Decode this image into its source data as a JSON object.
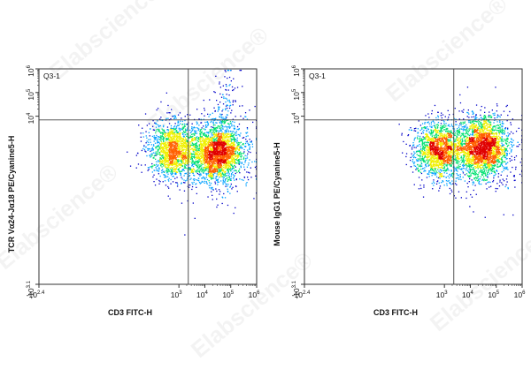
{
  "watermark": {
    "text": "Elabscience",
    "registered": "®"
  },
  "chart_data": [
    {
      "type": "scatter",
      "subtype": "flow-cytometry-density-dot-plot",
      "title": "",
      "xlabel": "CD3 FITC-H",
      "ylabel": "TCR Vα24-Jα18 PE/Cyanine5-H",
      "scale": "biexponential (log with negative region)",
      "x_ticks": [
        {
          "base": "-10",
          "exp": "2.4",
          "value": -251
        },
        {
          "base": "10",
          "exp": "3",
          "value": 1000
        },
        {
          "base": "10",
          "exp": "4",
          "value": 10000
        },
        {
          "base": "10",
          "exp": "5",
          "value": 100000
        },
        {
          "base": "10",
          "exp": "6",
          "value": 1000000
        }
      ],
      "y_ticks": [
        {
          "base": "-10",
          "exp": "3.1",
          "value": -1259
        },
        {
          "base": "10",
          "exp": "4",
          "value": 10000
        },
        {
          "base": "10",
          "exp": "5",
          "value": 100000
        },
        {
          "base": "10",
          "exp": "6",
          "value": 1000000
        }
      ],
      "gate": {
        "label": "Q3-1",
        "x_threshold": 2300,
        "y_threshold": 7000
      },
      "populations": [
        {
          "x_center": 600,
          "y_center": 400,
          "count": 1600
        },
        {
          "x_center": 30000,
          "y_center": 300,
          "count": 2200
        },
        {
          "x_center": 25000,
          "y_center": 150,
          "count": 300
        },
        {
          "x_center": 50000,
          "y_center": 25000,
          "count": 130
        }
      ],
      "grid": false,
      "colormap": [
        "#0000c8",
        "#00a0ff",
        "#00e070",
        "#f0f000",
        "#ff6000",
        "#e00000"
      ]
    },
    {
      "type": "scatter",
      "subtype": "flow-cytometry-density-dot-plot",
      "title": "",
      "xlabel": "CD3 FITC-H",
      "ylabel": "Mouse IgG1 PE/Cyanine5-H",
      "scale": "biexponential (log with negative region)",
      "x_ticks": [
        {
          "base": "-10",
          "exp": "2.4",
          "value": -251
        },
        {
          "base": "10",
          "exp": "3",
          "value": 1000
        },
        {
          "base": "10",
          "exp": "4",
          "value": 10000
        },
        {
          "base": "10",
          "exp": "5",
          "value": 100000
        },
        {
          "base": "10",
          "exp": "6",
          "value": 1000000
        }
      ],
      "y_ticks": [
        {
          "base": "-10",
          "exp": "3.1",
          "value": -1259
        },
        {
          "base": "10",
          "exp": "4",
          "value": 10000
        },
        {
          "base": "10",
          "exp": "5",
          "value": 100000
        },
        {
          "base": "10",
          "exp": "6",
          "value": 1000000
        }
      ],
      "gate": {
        "label": "Q3-1",
        "x_threshold": 2300,
        "y_threshold": 7000
      },
      "populations": [
        {
          "x_center": 600,
          "y_center": 400,
          "count": 1700
        },
        {
          "x_center": 30000,
          "y_center": 500,
          "count": 2300
        },
        {
          "x_center": 20000,
          "y_center": 300,
          "count": 250
        }
      ],
      "grid": false,
      "colormap": [
        "#0000c8",
        "#00a0ff",
        "#00e070",
        "#f0f000",
        "#ff6000",
        "#e00000"
      ]
    }
  ]
}
